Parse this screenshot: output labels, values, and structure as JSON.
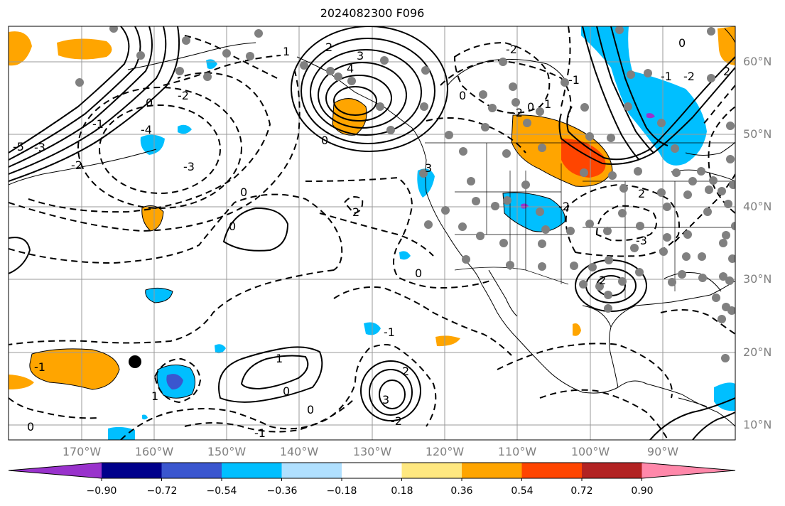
{
  "title": "2024082300 F096",
  "lat_labels": [
    "60°N",
    "50°N",
    "40°N",
    "30°N",
    "20°N",
    "10°N"
  ],
  "lon_labels": [
    "170°W",
    "160°W",
    "150°W",
    "140°W",
    "130°W",
    "120°W",
    "110°W",
    "100°W",
    "90°W"
  ],
  "contour_labels": [
    "-5",
    "-3",
    "-2",
    "-1",
    "0",
    "-4",
    "-3",
    "0",
    "-2",
    "1",
    "2",
    "3",
    "4",
    "0",
    "-2",
    "0",
    "-1",
    "-2",
    "0",
    "1",
    "0",
    "-1",
    "-2",
    "2",
    "2",
    "3",
    "2",
    "-3",
    "-2",
    "0",
    "0",
    "-1",
    "1",
    "2",
    "3",
    "2",
    "1",
    "0",
    "0",
    "-2",
    "-1",
    "-1",
    "0"
  ],
  "colorbar": {
    "tick_labels": [
      "−0.90",
      "−0.72",
      "−0.54",
      "−0.36",
      "−0.18",
      "0.18",
      "0.36",
      "0.54",
      "0.72",
      "0.90"
    ],
    "colors": [
      "#9932cc",
      "#00008b",
      "#3a56cf",
      "#00bfff",
      "#b0e0ff",
      "#ffffff",
      "#ffe880",
      "#ffa500",
      "#ff4500",
      "#b22222",
      "#ff88aa"
    ]
  },
  "fill_colors": {
    "orange": "#ffa500",
    "red": "#ff4500",
    "light_blue": "#00bfff",
    "deep_blue": "#3a56cf",
    "purple": "#9932cc"
  }
}
